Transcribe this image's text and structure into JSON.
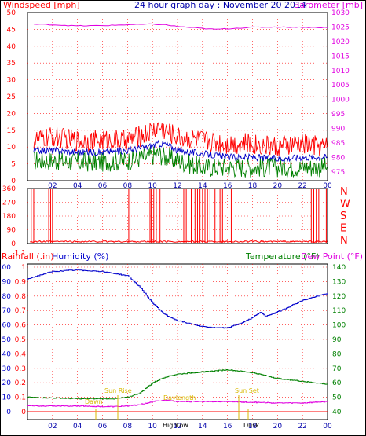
{
  "header": {
    "left": "Windspeed [mph]",
    "center": "24 hour graph day : November 20 2014",
    "right": "Barometer [mb]"
  },
  "mid_header": {
    "rain": "Rainfall (.in)",
    "humidity": "Humidity (%)",
    "temperature": "Temperature (°F)",
    "dewpoint": "Dew Point (°F)"
  },
  "colors": {
    "wind_gust": "#ff0000",
    "wind_avg": "#0000c8",
    "wind_speed": "#008000",
    "barometer": "#e000e0",
    "direction": "#ff0000",
    "humidity": "#0000cc",
    "rain": "#ff0000",
    "temperature": "#008000",
    "dewpoint": "#e000e0",
    "annotation": "#d8b800",
    "grid": "#ff0000"
  },
  "annotations": {
    "dawn": "Dawn",
    "sunrise": "Sun Rise",
    "daylength": "Daylength",
    "sunset": "Sun Set",
    "dusk": "Dusk",
    "high": "High",
    "low": "Low"
  },
  "chart_data": [
    {
      "type": "line",
      "panel": "wind_barometer",
      "x_ticks": [
        "02",
        "04",
        "06",
        "08",
        "10",
        "12",
        "14",
        "16",
        "18",
        "20",
        "22",
        "00"
      ],
      "left_axis": {
        "label": "Windspeed [mph]",
        "ticks": [
          0,
          5,
          10,
          15,
          20,
          25,
          30,
          35,
          40,
          45,
          50
        ],
        "range": [
          0,
          50
        ]
      },
      "right_axis": {
        "label": "Barometer [mb]",
        "ticks": [
          975,
          980,
          985,
          990,
          995,
          1000,
          1005,
          1010,
          1015,
          1020,
          1025,
          1030
        ],
        "range": [
          972,
          1030
        ]
      },
      "series": [
        {
          "name": "gust",
          "axis": "left",
          "hours": [
            0.5,
            2,
            4,
            6,
            8,
            9.5,
            10.5,
            11,
            12,
            14,
            16,
            18,
            20,
            22,
            24
          ],
          "values": [
            12,
            13,
            12,
            12,
            12,
            14,
            16,
            15,
            13,
            12,
            11,
            11,
            10,
            11,
            10
          ]
        },
        {
          "name": "avg",
          "axis": "left",
          "hours": [
            0.5,
            2,
            4,
            6,
            8,
            9.5,
            10.5,
            11,
            12,
            14,
            16,
            18,
            20,
            22,
            24
          ],
          "values": [
            9,
            9,
            8.5,
            8.5,
            9,
            10,
            11,
            11,
            9,
            8,
            7,
            7,
            6.5,
            7,
            7
          ]
        },
        {
          "name": "speed",
          "axis": "left",
          "hours": [
            0.5,
            2,
            4,
            6,
            8,
            9.5,
            10.5,
            11,
            12,
            14,
            16,
            18,
            20,
            22,
            24
          ],
          "values": [
            6,
            6,
            5.5,
            5.5,
            6,
            7,
            8,
            7,
            6,
            4,
            4,
            4,
            4,
            4,
            4
          ]
        },
        {
          "name": "barometer",
          "axis": "right",
          "hours": [
            0.5,
            2,
            4,
            6,
            8,
            10,
            11,
            12,
            14,
            15,
            16,
            18,
            20,
            22,
            24
          ],
          "values": [
            1026,
            1025.8,
            1025.4,
            1025.5,
            1025.8,
            1026,
            1025.8,
            1025.2,
            1024.5,
            1024.2,
            1024.4,
            1024.9,
            1025,
            1024.9,
            1024.8
          ]
        }
      ]
    },
    {
      "type": "line",
      "panel": "wind_direction",
      "right_axis": {
        "labels": [
          "N",
          "W",
          "S",
          "E",
          "N"
        ]
      },
      "left_axis": {
        "ticks": [
          0,
          90,
          180,
          270,
          360
        ],
        "range": [
          0,
          360
        ]
      },
      "series": [
        {
          "name": "direction",
          "spike_hours": [
            0.3,
            0.5,
            1.7,
            1.85,
            2.0,
            8.1,
            8.2,
            9.8,
            9.9,
            10.1,
            10.3,
            10.6,
            12.5,
            12.7,
            13.1,
            13.4,
            13.6,
            13.8,
            14.0,
            14.2,
            14.4,
            14.6,
            15.0,
            15.4,
            15.6,
            16.3,
            22.7,
            22.9,
            23.1,
            23.3,
            23.9
          ]
        }
      ]
    },
    {
      "type": "line",
      "panel": "temp_humidity_rain",
      "x_ticks": [
        "02",
        "04",
        "06",
        "08",
        "10",
        "12",
        "14",
        "16",
        "18",
        "20",
        "22",
        "00"
      ],
      "left_outer_axis": {
        "label": "Humidity (%)",
        "ticks": [
          0,
          10,
          20,
          30,
          40,
          50,
          60,
          70,
          80,
          90,
          100
        ],
        "range": [
          0,
          100
        ]
      },
      "left_inner_axis": {
        "label": "Rainfall (.in)",
        "ticks": [
          0,
          0.1,
          0.2,
          0.3,
          0.4,
          0.5,
          0.6,
          0.7,
          0.8,
          0.9,
          1,
          1.1
        ],
        "range": [
          0,
          1.2
        ]
      },
      "right_axis": {
        "label": "Temperature (°F)",
        "ticks": [
          40,
          50,
          60,
          70,
          80,
          90,
          100,
          110,
          120,
          130,
          140
        ],
        "range": [
          30,
          150
        ]
      },
      "series": [
        {
          "name": "humidity",
          "hours": [
            0,
            2,
            4,
            6,
            8,
            9,
            10,
            11,
            12,
            13,
            14,
            15,
            16,
            17,
            18,
            18.6,
            19,
            20,
            22,
            24
          ],
          "values": [
            92,
            97,
            98,
            97,
            94,
            86,
            75,
            67,
            63,
            61,
            59,
            58,
            58,
            61,
            65,
            69,
            66,
            69,
            77,
            82
          ]
        },
        {
          "name": "temperature",
          "hours": [
            0,
            2,
            4,
            6,
            7,
            8,
            9,
            10,
            11,
            12,
            14,
            16,
            18,
            20,
            22,
            24
          ],
          "values": [
            50,
            49.5,
            49,
            49,
            49,
            50,
            53,
            60,
            64,
            66,
            67.5,
            69,
            67,
            63,
            61,
            59
          ]
        },
        {
          "name": "dew point",
          "hours": [
            0,
            2,
            4,
            6,
            7,
            8,
            9,
            10,
            11,
            12,
            14,
            16,
            18,
            20,
            22,
            24
          ],
          "values": [
            44,
            44,
            44,
            43.5,
            43.5,
            44,
            45,
            47,
            48,
            47,
            47,
            47,
            46.5,
            46,
            46,
            47
          ]
        },
        {
          "name": "rain",
          "hours": [
            0,
            24
          ],
          "values": [
            0,
            0
          ]
        }
      ]
    }
  ]
}
